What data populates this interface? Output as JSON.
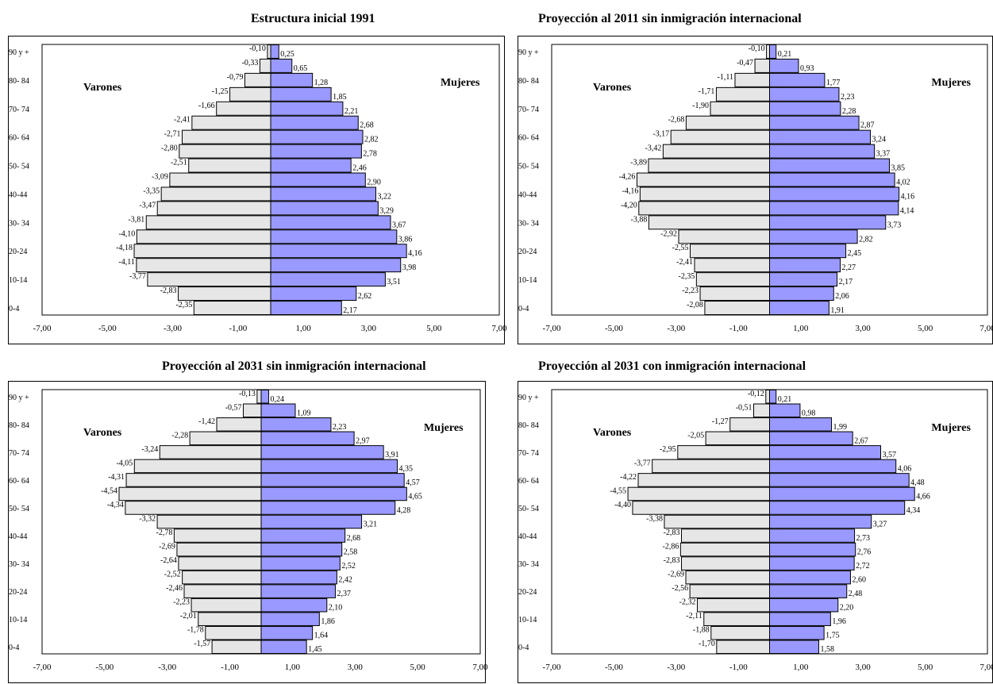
{
  "colors": {
    "male": "#e6e6e6",
    "female": "#9999ff",
    "stroke": "#000000"
  },
  "labels": {
    "male": "Varones",
    "female": "Mujeres"
  },
  "age_groups": [
    "0-4",
    "5-9",
    "10-14",
    "15-19",
    "20-24",
    "25-29",
    "30-34",
    "35-39",
    "40-44",
    "45-49",
    "50-54",
    "55-59",
    "60-64",
    "65-69",
    "70-74",
    "75-79",
    "80- 84",
    "85-89",
    "90 y +"
  ],
  "shown_age_labels": [
    "0-4",
    "10-14",
    "20-24",
    "30- 34",
    "40-44",
    "50- 54",
    "60- 64",
    "70- 74",
    "80- 84",
    "90 y +"
  ],
  "x_ticks": [
    "-7,00",
    "-5,00",
    "-3,00",
    "-1,00",
    "1,00",
    "3,00",
    "5,00",
    "7,00"
  ],
  "chart_data": [
    {
      "type": "bar",
      "title": "Estructura inicial 1991",
      "xlim": [
        -7,
        7
      ],
      "categories": [
        "0-4",
        "5-9",
        "10-14",
        "15-19",
        "20-24",
        "25-29",
        "30-34",
        "35-39",
        "40-44",
        "45-49",
        "50-54",
        "55-59",
        "60-64",
        "65-69",
        "70-74",
        "75-79",
        "80-84",
        "85-89",
        "90 y +"
      ],
      "series": [
        {
          "name": "Varones",
          "values": [
            -2.35,
            -2.83,
            -3.77,
            -4.11,
            -4.18,
            -4.1,
            -3.81,
            -3.47,
            -3.35,
            -3.09,
            -2.51,
            -2.8,
            -2.71,
            -2.41,
            -1.66,
            -1.25,
            -0.79,
            -0.33,
            -0.1
          ],
          "labels": [
            "-2,35",
            "-2,83",
            "-3,77",
            "-4,11",
            "-4,18",
            "-4,10",
            "-3,81",
            "-3,47",
            "-3,35",
            "-3,09",
            "-2,51",
            "-2,80",
            "-2,71",
            "-2,41",
            "-1,66",
            "-1,25",
            "-0,79",
            "-0,33",
            "-0,10"
          ]
        },
        {
          "name": "Mujeres",
          "values": [
            2.17,
            2.62,
            3.51,
            3.98,
            4.16,
            3.86,
            3.67,
            3.29,
            3.22,
            2.9,
            2.46,
            2.78,
            2.82,
            2.68,
            2.21,
            1.85,
            1.28,
            0.65,
            0.25
          ],
          "labels": [
            "2,17",
            "2,62",
            "3,51",
            "3,98",
            "4,16",
            "3,86",
            "3,67",
            "3,29",
            "3,22",
            "2,90",
            "2,46",
            "2,78",
            "2,82",
            "2,68",
            "2,21",
            "1,85",
            "1,28",
            "0,65",
            "0,25"
          ]
        }
      ]
    },
    {
      "type": "bar",
      "title": "Proyección al 2011 sin inmigración internacional",
      "xlim": [
        -7,
        7
      ],
      "categories": [
        "0-4",
        "5-9",
        "10-14",
        "15-19",
        "20-24",
        "25-29",
        "30-34",
        "35-39",
        "40-44",
        "45-49",
        "50-54",
        "55-59",
        "60-64",
        "65-69",
        "70-74",
        "75-79",
        "80-84",
        "85-89",
        "90 y +"
      ],
      "series": [
        {
          "name": "Varones",
          "values": [
            -2.08,
            -2.23,
            -2.35,
            -2.41,
            -2.55,
            -2.92,
            -3.88,
            -4.2,
            -4.16,
            -4.26,
            -3.89,
            -3.42,
            -3.17,
            -2.68,
            -1.9,
            -1.71,
            -1.11,
            -0.47,
            -0.1
          ],
          "labels": [
            "-2,08",
            "-2,23",
            "-2,35",
            "-2,41",
            "-2,55",
            "-2,92",
            "-3,88",
            "-4,20",
            "-4,16",
            "-4,26",
            "-3,89",
            "-3,42",
            "-3,17",
            "-2,68",
            "-1,90",
            "-1,71",
            "-1,11",
            "-0,47",
            "-0,10"
          ]
        },
        {
          "name": "Mujeres",
          "values": [
            1.91,
            2.06,
            2.17,
            2.27,
            2.45,
            2.82,
            3.73,
            4.14,
            4.16,
            4.02,
            3.85,
            3.37,
            3.24,
            2.87,
            2.28,
            2.23,
            1.77,
            0.93,
            0.21
          ],
          "labels": [
            "1,91",
            "2,06",
            "2,17",
            "2,27",
            "2,45",
            "2,82",
            "3,73",
            "4,14",
            "4,16",
            "4,02",
            "3,85",
            "3,37",
            "3,24",
            "2,87",
            "2,28",
            "2,23",
            "1,77",
            "0,93",
            "0,21"
          ]
        }
      ]
    },
    {
      "type": "bar",
      "title": "Proyección al 2031 sin inmigración internacional",
      "xlim": [
        -7,
        7
      ],
      "categories": [
        "0-4",
        "5-9",
        "10-14",
        "15-19",
        "20-24",
        "25-29",
        "30-34",
        "35-39",
        "40-44",
        "45-49",
        "50-54",
        "55-59",
        "60-64",
        "65-69",
        "70-74",
        "75-79",
        "80-84",
        "85-89",
        "90 y +"
      ],
      "series": [
        {
          "name": "Varones",
          "values": [
            -1.57,
            -1.78,
            -2.01,
            -2.23,
            -2.46,
            -2.52,
            -2.64,
            -2.69,
            -2.78,
            -3.32,
            -4.34,
            -4.54,
            -4.31,
            -4.05,
            -3.24,
            -2.28,
            -1.42,
            -0.57,
            -0.13
          ],
          "labels": [
            "-1,57",
            "-1,78",
            "-2,01",
            "-2,23",
            "-2,46",
            "-2,52",
            "-2,64",
            "-2,69",
            "-2,78",
            "-3,32",
            "-4,34",
            "-4,54",
            "-4,31",
            "-4,05",
            "-3,24",
            "-2,28",
            "-1,42",
            "-0,57",
            "-0,13"
          ]
        },
        {
          "name": "Mujeres",
          "values": [
            1.45,
            1.64,
            1.86,
            2.1,
            2.37,
            2.42,
            2.52,
            2.58,
            2.68,
            3.21,
            4.28,
            4.65,
            4.57,
            4.35,
            3.91,
            2.97,
            2.23,
            1.09,
            0.24
          ],
          "labels": [
            "1,45",
            "1,64",
            "1,86",
            "2,10",
            "2,37",
            "2,42",
            "2,52",
            "2,58",
            "2,68",
            "3,21",
            "4,28",
            "4,65",
            "4,57",
            "4,35",
            "3,91",
            "2,97",
            "2,23",
            "1,09",
            "0,24"
          ]
        }
      ]
    },
    {
      "type": "bar",
      "title": "Proyección al 2031 con inmigración internacional",
      "xlim": [
        -7,
        7
      ],
      "categories": [
        "0-4",
        "5-9",
        "10-14",
        "15-19",
        "20-24",
        "25-29",
        "30-34",
        "35-39",
        "40-44",
        "45-49",
        "50-54",
        "55-59",
        "60-64",
        "65-69",
        "70-74",
        "75-79",
        "80-84",
        "85-89",
        "90 y +"
      ],
      "series": [
        {
          "name": "Varones",
          "values": [
            -1.7,
            -1.88,
            -2.11,
            -2.32,
            -2.56,
            -2.69,
            -2.83,
            -2.86,
            -2.83,
            -3.38,
            -4.4,
            -4.55,
            -4.22,
            -3.77,
            -2.95,
            -2.05,
            -1.27,
            -0.51,
            -0.12
          ],
          "labels": [
            "-1,70",
            "-1,88",
            "-2,11",
            "-2,32",
            "-2,56",
            "-2,69",
            "-2,83",
            "-2,86",
            "-2,83",
            "-3,38",
            "-4,40",
            "-4,55",
            "-4,22",
            "-3,77",
            "-2,95",
            "-2,05",
            "-1,27",
            "-0,51",
            "-0,12"
          ]
        },
        {
          "name": "Mujeres",
          "values": [
            1.58,
            1.75,
            1.96,
            2.2,
            2.48,
            2.6,
            2.72,
            2.76,
            2.73,
            3.27,
            4.34,
            4.66,
            4.48,
            4.06,
            3.57,
            2.67,
            1.99,
            0.98,
            0.21
          ],
          "labels": [
            "1,58",
            "1,75",
            "1,96",
            "2,20",
            "2,48",
            "2,60",
            "2,72",
            "2,76",
            "2,73",
            "3,27",
            "4,34",
            "4,66",
            "4,48",
            "4,06",
            "3,57",
            "2,67",
            "1,99",
            "0,98",
            "0,21"
          ]
        }
      ]
    }
  ]
}
